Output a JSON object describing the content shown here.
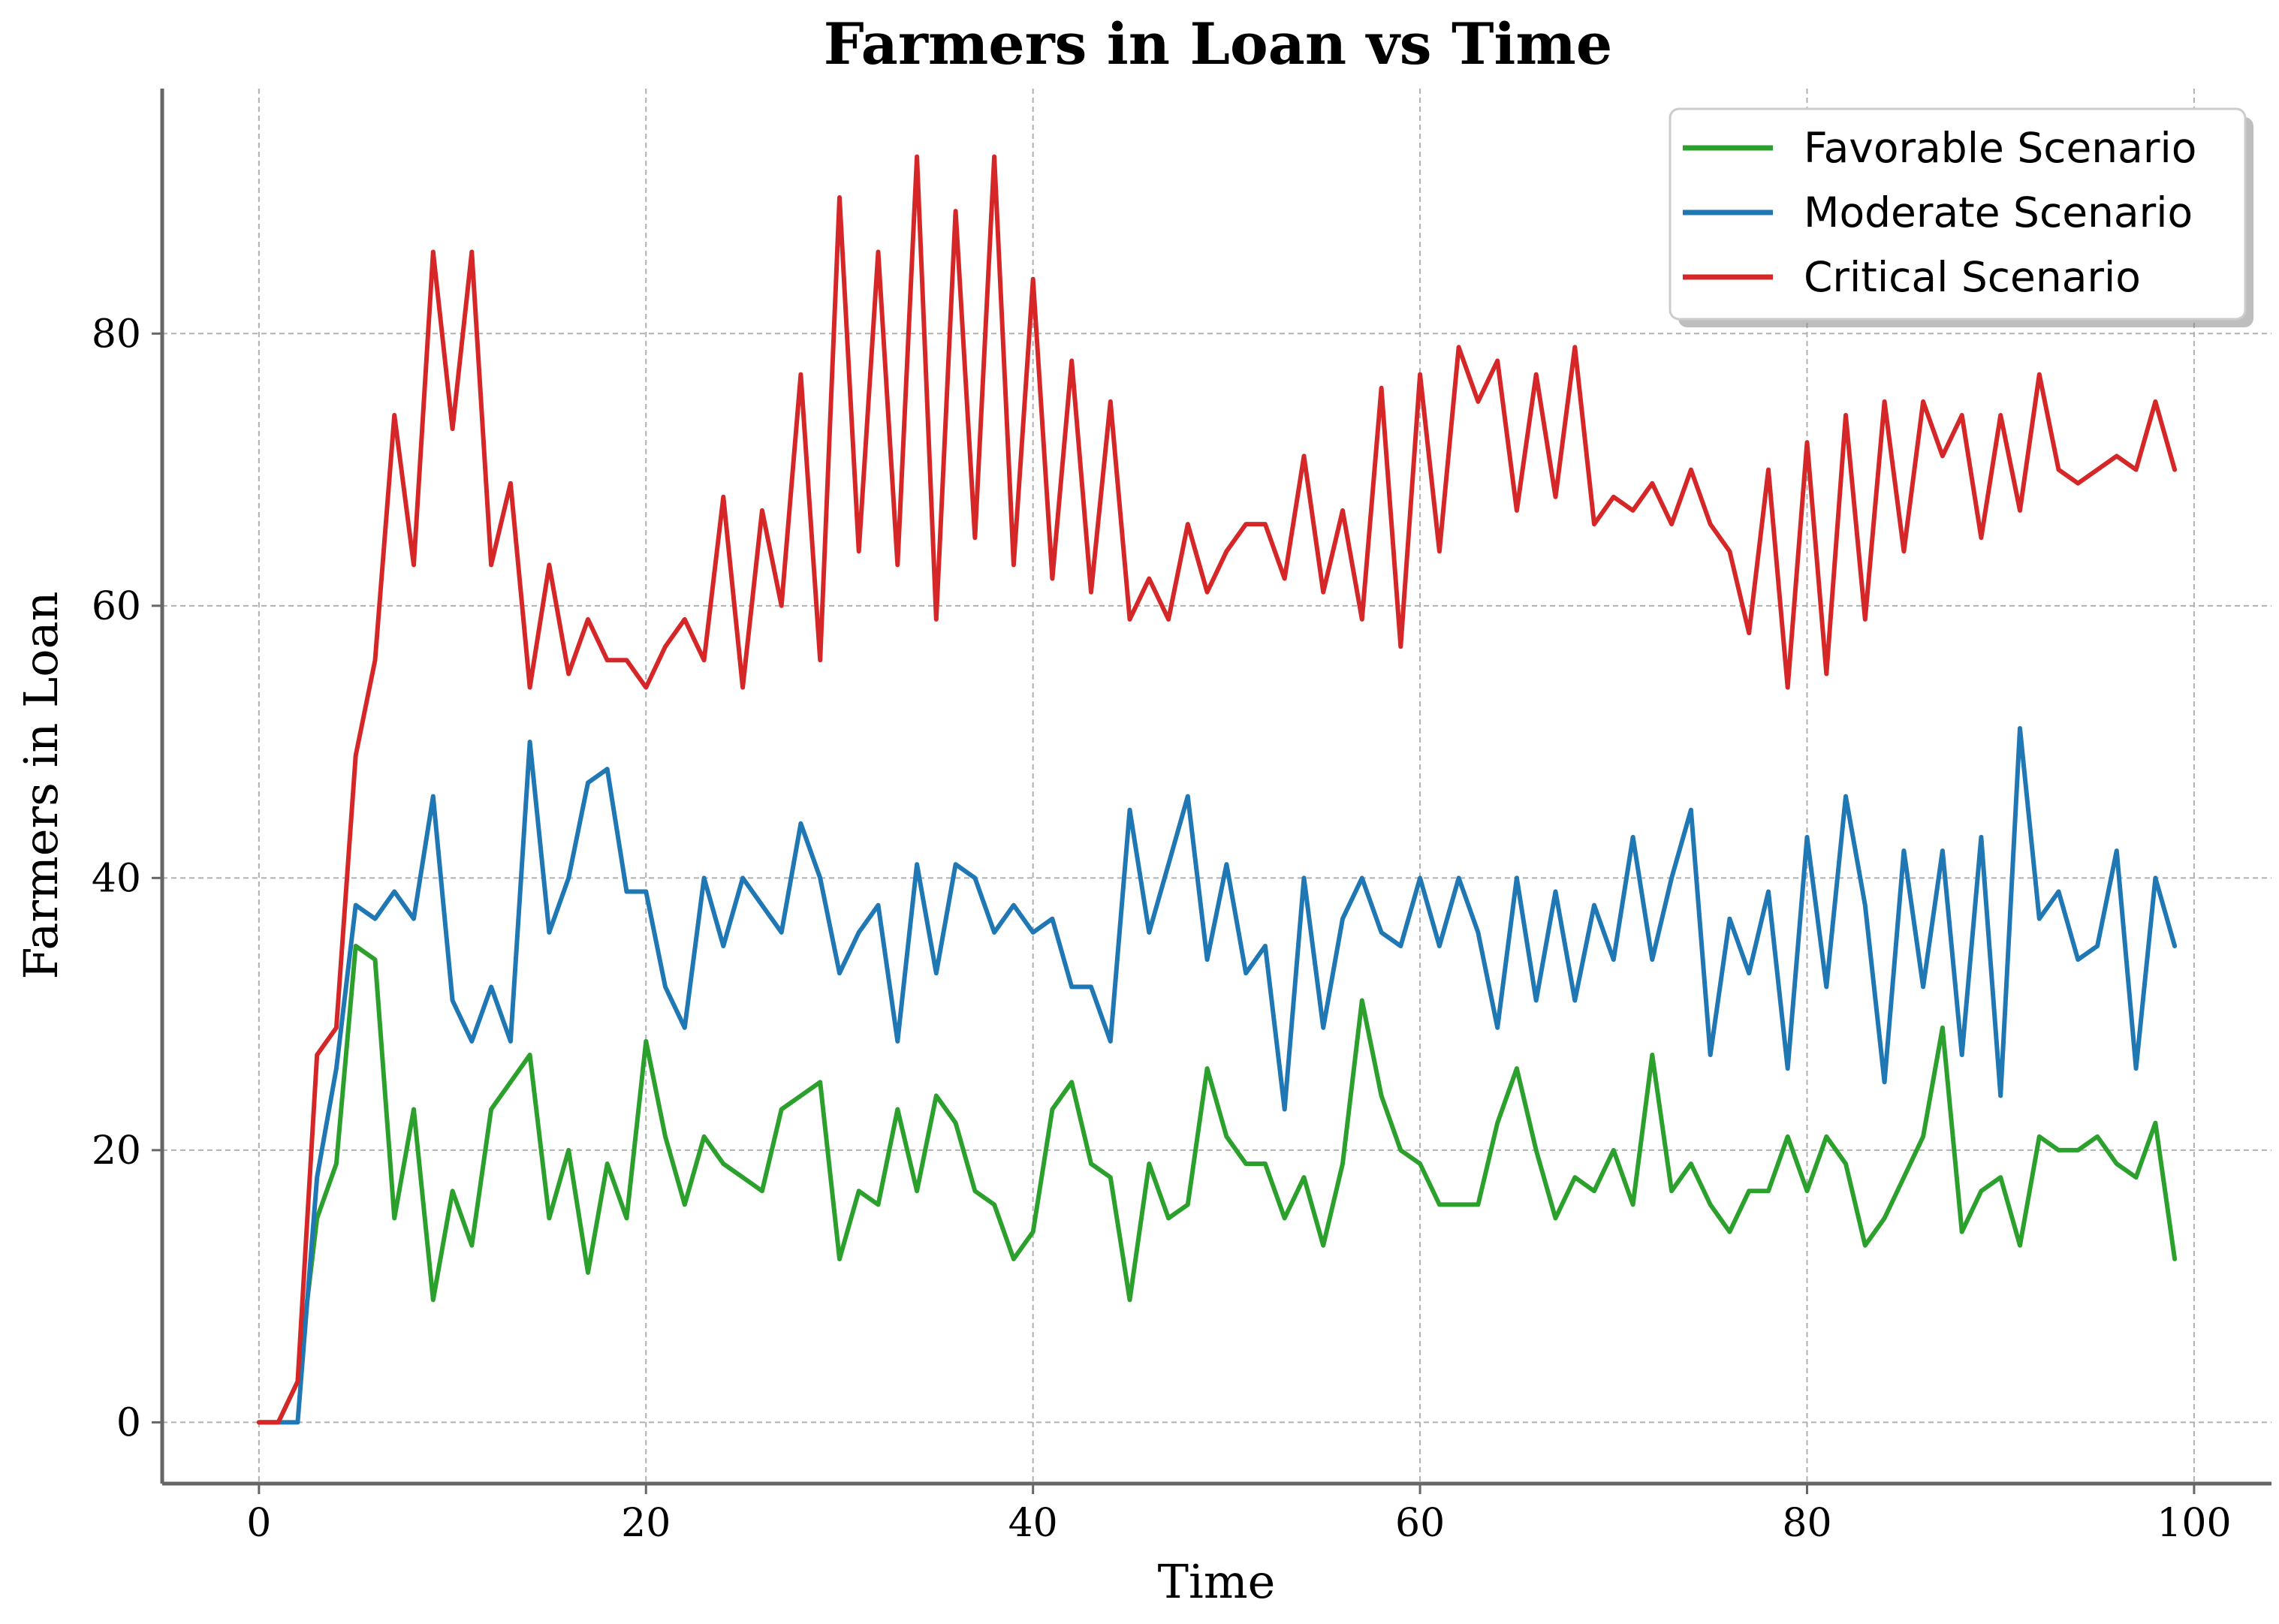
{
  "chart_data": {
    "type": "line",
    "title": "Farmers in Loan vs Time",
    "xlabel": "Time",
    "ylabel": "Farmers in Loan",
    "xlim": [
      -5,
      104
    ],
    "ylim": [
      -4.5,
      98
    ],
    "x_ticks": [
      0,
      20,
      40,
      60,
      80,
      100
    ],
    "y_ticks": [
      0,
      20,
      40,
      60,
      80
    ],
    "x_tick_labels": [
      "0",
      "20",
      "40",
      "60",
      "80",
      "100"
    ],
    "y_tick_labels": [
      "0",
      "20",
      "40",
      "60",
      "80"
    ],
    "grid": true,
    "legend_position": "top-right",
    "series": [
      {
        "name": "Favorable Scenario",
        "color": "#2ca02c",
        "values": [
          0,
          0,
          3,
          15,
          19,
          35,
          34,
          15,
          23,
          9,
          17,
          13,
          23,
          25,
          27,
          15,
          20,
          11,
          19,
          15,
          28,
          21,
          16,
          21,
          19,
          18,
          17,
          23,
          24,
          25,
          12,
          17,
          16,
          23,
          17,
          24,
          22,
          17,
          16,
          12,
          14,
          23,
          25,
          19,
          18,
          9,
          19,
          15,
          16,
          26,
          21,
          19,
          19,
          15,
          18,
          13,
          19,
          31,
          24,
          20,
          19,
          16,
          16,
          16,
          22,
          26,
          20,
          15,
          18,
          17,
          20,
          16,
          27,
          17,
          19,
          16,
          14,
          17,
          17,
          21,
          17,
          21,
          19,
          13,
          15,
          18,
          21,
          29,
          14,
          17,
          18,
          13,
          21,
          20,
          20,
          21,
          19,
          18,
          22,
          12
        ]
      },
      {
        "name": "Moderate Scenario",
        "color": "#1f77b4",
        "values": [
          0,
          0,
          0,
          18,
          26,
          38,
          37,
          39,
          37,
          46,
          31,
          28,
          32,
          28,
          50,
          36,
          40,
          47,
          48,
          39,
          39,
          32,
          29,
          40,
          35,
          40,
          38,
          36,
          44,
          40,
          33,
          36,
          38,
          28,
          41,
          33,
          41,
          40,
          36,
          38,
          36,
          37,
          32,
          32,
          28,
          45,
          36,
          41,
          46,
          34,
          41,
          33,
          35,
          23,
          40,
          29,
          37,
          40,
          36,
          35,
          40,
          35,
          40,
          36,
          29,
          40,
          31,
          39,
          31,
          38,
          34,
          43,
          34,
          40,
          45,
          27,
          37,
          33,
          39,
          26,
          43,
          32,
          46,
          38,
          25,
          42,
          32,
          42,
          27,
          43,
          24,
          51,
          37,
          39,
          34,
          35,
          42,
          26,
          40,
          35
        ]
      },
      {
        "name": "Critical Scenario",
        "color": "#d62728",
        "values": [
          0,
          0,
          3,
          27,
          29,
          49,
          56,
          74,
          63,
          86,
          73,
          86,
          63,
          69,
          54,
          63,
          55,
          59,
          56,
          56,
          54,
          57,
          59,
          56,
          68,
          54,
          67,
          60,
          77,
          56,
          90,
          64,
          86,
          63,
          93,
          59,
          89,
          65,
          93,
          63,
          84,
          62,
          78,
          61,
          75,
          59,
          62,
          59,
          66,
          61,
          64,
          66,
          66,
          62,
          71,
          61,
          67,
          59,
          76,
          57,
          77,
          64,
          79,
          75,
          78,
          67,
          77,
          68,
          79,
          66,
          68,
          67,
          69,
          66,
          70,
          66,
          64,
          58,
          70,
          54,
          72,
          55,
          74,
          59,
          75,
          64,
          75,
          71,
          74,
          65,
          74,
          67,
          77,
          70,
          69,
          70,
          71,
          70,
          75,
          70
        ]
      }
    ]
  }
}
